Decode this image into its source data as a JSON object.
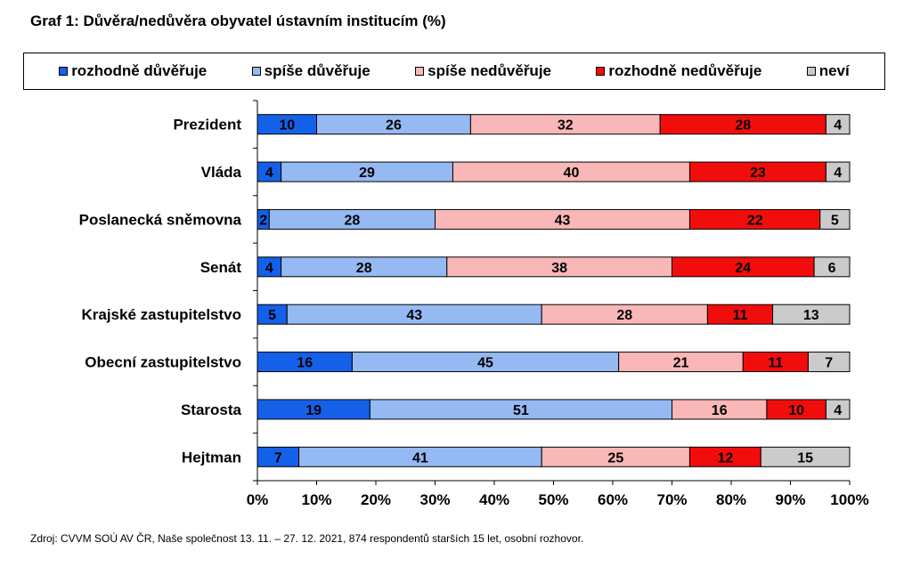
{
  "title": "Graf 1: Důvěra/nedůvěra obyvatel ústavním institucím (%)",
  "source": "Zdroj: CVVM SOÚ AV ČR, Naše společnost 13.  11. – 27. 12. 2021, 874 respondentů starších 15 let, osobní rozhovor.",
  "chart_data": {
    "type": "bar",
    "orientation": "horizontal",
    "stacked": true,
    "percent_scale": true,
    "categories": [
      "Prezident",
      "Vláda",
      "Poslanecká sněmovna",
      "Senát",
      "Krajské zastupitelstvo",
      "Obecní zastupitelstvo",
      "Starosta",
      "Hejtman"
    ],
    "series": [
      {
        "name": "rozhodně důvěřuje",
        "color": "#1560e8",
        "values": [
          10,
          4,
          2,
          4,
          5,
          16,
          19,
          7
        ]
      },
      {
        "name": "spíše důvěřuje",
        "color": "#95b9f2",
        "values": [
          26,
          29,
          28,
          28,
          43,
          45,
          51,
          41
        ]
      },
      {
        "name": "spíše nedůvěřuje",
        "color": "#fab7b7",
        "values": [
          32,
          40,
          43,
          38,
          28,
          21,
          16,
          25
        ]
      },
      {
        "name": "rozhodně nedůvěřuje",
        "color": "#f20d0d",
        "values": [
          28,
          23,
          22,
          24,
          11,
          11,
          10,
          12
        ]
      },
      {
        "name": "neví",
        "color": "#cbcbcb",
        "values": [
          4,
          4,
          5,
          6,
          13,
          7,
          4,
          15
        ]
      }
    ],
    "xlim": [
      0,
      100
    ],
    "xticks": [
      "0%",
      "10%",
      "20%",
      "30%",
      "40%",
      "50%",
      "60%",
      "70%",
      "80%",
      "90%",
      "100%"
    ],
    "legend_position": "top",
    "grid": false
  }
}
